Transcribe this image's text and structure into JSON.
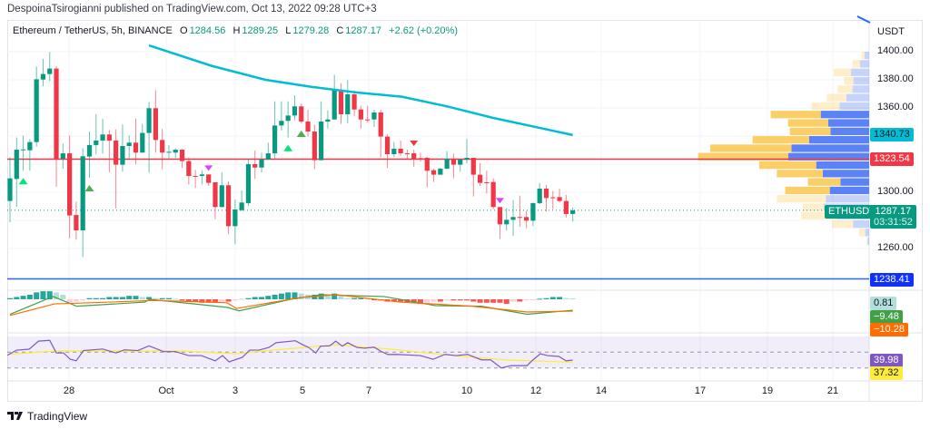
{
  "header": {
    "publish_line": "DespoinaTsirogianni published on TradingView.com, Oct 13, 2022 09:28 UTC+3"
  },
  "legend": {
    "symbol": "Ethereum / TetherUS, 5h, BINANCE",
    "o_label": "O",
    "o": "1284.56",
    "h_label": "H",
    "h": "1289.25",
    "l_label": "L",
    "l": "1279.28",
    "c_label": "C",
    "c": "1287.17",
    "change": "+2.62 (+0.20%)"
  },
  "price_axis": {
    "currency": "USDT",
    "ticks": [
      "1400.00",
      "1380.00",
      "1360.00",
      "1300.00",
      "1260.00"
    ],
    "tick_values": [
      1400,
      1380,
      1360,
      1300,
      1260
    ],
    "ma_tag": "1340.73",
    "resistance_tag": "1323.54",
    "symbol_tag": "ETHUSDT",
    "last_price_tag": "1287.17",
    "countdown": "03:31:52",
    "support_tag": "1238.41"
  },
  "macd_axis": {
    "histogram": "0.81",
    "macd": "−9.48",
    "signal": "−10.28"
  },
  "rsi_axis": {
    "rsi": "39.98",
    "rsi_ma": "37.32"
  },
  "time_axis": [
    "28",
    "Oct",
    "3",
    "5",
    "7",
    "10",
    "12",
    "14",
    "17",
    "19",
    "21"
  ],
  "colors": {
    "up": "#089981",
    "down": "#f23645",
    "ma": "#00bcd4",
    "resistance": "#f23645",
    "support": "#2962ff",
    "macd": "#43a047",
    "signal": "#ff6d00",
    "rsi": "#7e57c2",
    "rsi_ma": "#ffeb3b",
    "vp_up": "#5b83f7",
    "vp_down": "#fbcf68"
  },
  "chart_data": {
    "type": "candlestick",
    "levels": {
      "resistance": 1323.54,
      "support": 1238.41,
      "last": 1287.17
    },
    "candles_ohlc": [
      [
        1293.8,
        1325,
        1278.7,
        1309.9
      ],
      [
        1309.5,
        1339,
        1289.5,
        1330.3
      ],
      [
        1330.3,
        1340.4,
        1315.3,
        1330.5
      ],
      [
        1329.9,
        1337.9,
        1315.3,
        1335.7
      ],
      [
        1335.7,
        1389.5,
        1332.5,
        1380.4
      ],
      [
        1380.2,
        1394.8,
        1375.5,
        1384.1
      ],
      [
        1384.1,
        1399.8,
        1379.1,
        1388
      ],
      [
        1388,
        1389.9,
        1303.9,
        1323.9
      ],
      [
        1323.9,
        1334.6,
        1316.8,
        1327.7
      ],
      [
        1327.7,
        1340.4,
        1267.3,
        1283.5
      ],
      [
        1283.8,
        1293.3,
        1266.3,
        1272.9
      ],
      [
        1272.9,
        1331.4,
        1254,
        1325.6
      ],
      [
        1325.4,
        1343.2,
        1310.3,
        1333.6
      ],
      [
        1333.6,
        1355.5,
        1327.1,
        1336.8
      ],
      [
        1336.8,
        1352.3,
        1327.5,
        1341.1
      ],
      [
        1341.1,
        1344.3,
        1314.2,
        1336.8
      ],
      [
        1336.8,
        1344.7,
        1288.4,
        1319.6
      ],
      [
        1319.6,
        1348.2,
        1314.6,
        1332.9
      ],
      [
        1332.9,
        1340.4,
        1323.2,
        1335.3
      ],
      [
        1335.3,
        1352.3,
        1320,
        1328.2
      ],
      [
        1328.2,
        1348.6,
        1328.2,
        1342.2
      ],
      [
        1342.2,
        1364.1,
        1313.8,
        1359.8
      ],
      [
        1359.8,
        1372.7,
        1328.2,
        1337.2
      ],
      [
        1337.2,
        1345,
        1316.4,
        1328.2
      ],
      [
        1328.2,
        1333.6,
        1323.9,
        1328.8
      ],
      [
        1328.2,
        1331.4,
        1324.3,
        1330.3
      ],
      [
        1330.3,
        1330.8,
        1317.4,
        1322.2
      ],
      [
        1322.2,
        1324.9,
        1305.6,
        1311.6
      ],
      [
        1311.6,
        1315.9,
        1303,
        1311.4
      ],
      [
        1311.6,
        1315.7,
        1305.6,
        1312.7
      ],
      [
        1312.7,
        1312.7,
        1304.5,
        1306.7
      ],
      [
        1307.1,
        1307.1,
        1280.9,
        1289.5
      ],
      [
        1289.5,
        1314.2,
        1289.5,
        1305
      ],
      [
        1305,
        1307.8,
        1270.1,
        1275.9
      ],
      [
        1275.9,
        1294.9,
        1263,
        1287.8
      ],
      [
        1287.3,
        1301.3,
        1286.7,
        1292.7
      ],
      [
        1292.3,
        1323.9,
        1290.1,
        1320
      ],
      [
        1320,
        1329.7,
        1309.5,
        1317.6
      ],
      [
        1317.6,
        1328.2,
        1314.2,
        1323.2
      ],
      [
        1323.2,
        1335.3,
        1323.2,
        1327.7
      ],
      [
        1327.7,
        1364.7,
        1323.9,
        1347.5
      ],
      [
        1347.5,
        1364.7,
        1343.9,
        1350.8
      ],
      [
        1350.8,
        1364.7,
        1338.9,
        1354.6
      ],
      [
        1354.6,
        1369,
        1351.2,
        1361.1
      ],
      [
        1361.1,
        1363.2,
        1349,
        1350.3
      ],
      [
        1350.3,
        1358.7,
        1339.6,
        1343.2
      ],
      [
        1343.2,
        1348.2,
        1316.4,
        1322.8
      ],
      [
        1322.8,
        1364.7,
        1322.8,
        1350.3
      ],
      [
        1350.3,
        1358.3,
        1345.4,
        1351.8
      ],
      [
        1351.8,
        1383.6,
        1351.8,
        1372.7
      ],
      [
        1372.7,
        1377.6,
        1348.6,
        1355.5
      ],
      [
        1355.5,
        1379.8,
        1349,
        1369.7
      ],
      [
        1369.7,
        1372.3,
        1354,
        1358.9
      ],
      [
        1358.9,
        1361.5,
        1345.4,
        1351.8
      ],
      [
        1351.8,
        1361.5,
        1349.7,
        1351.6
      ],
      [
        1351.8,
        1358.7,
        1346.5,
        1356.8
      ],
      [
        1356.8,
        1358.7,
        1325,
        1339.6
      ],
      [
        1339.6,
        1341.1,
        1317.4,
        1327.1
      ],
      [
        1327.1,
        1335.7,
        1325,
        1331
      ],
      [
        1331,
        1336.8,
        1326,
        1327.7
      ],
      [
        1327.7,
        1330.3,
        1323.9,
        1327.5
      ],
      [
        1327.7,
        1330.3,
        1318.1,
        1323.9
      ],
      [
        1324.3,
        1328.2,
        1321.7,
        1324
      ],
      [
        1324.5,
        1325.4,
        1303.5,
        1315.3
      ],
      [
        1315.7,
        1316.8,
        1307.3,
        1312.5
      ],
      [
        1312.5,
        1317.4,
        1312.5,
        1316.8
      ],
      [
        1316.8,
        1329.3,
        1316.4,
        1323.9
      ],
      [
        1323.9,
        1327.5,
        1309.9,
        1319.6
      ],
      [
        1319.6,
        1323.9,
        1314.6,
        1323.2
      ],
      [
        1323.2,
        1337.9,
        1320.7,
        1324.5
      ],
      [
        1324.5,
        1324.5,
        1297,
        1312.5
      ],
      [
        1312.5,
        1320.7,
        1304.5,
        1306.7
      ],
      [
        1307.1,
        1315.3,
        1299.2,
        1307
      ],
      [
        1307.3,
        1309.9,
        1288,
        1289.5
      ],
      [
        1289.5,
        1289.5,
        1266.9,
        1277.2
      ],
      [
        1277.2,
        1288.8,
        1272.7,
        1280.4
      ],
      [
        1280.4,
        1294.4,
        1269,
        1282.4
      ],
      [
        1282.4,
        1297.6,
        1275.5,
        1282.2
      ],
      [
        1282.4,
        1286.7,
        1274.4,
        1279.8
      ],
      [
        1279.8,
        1292.7,
        1275.9,
        1292.3
      ],
      [
        1292.3,
        1306.7,
        1291.6,
        1302.6
      ],
      [
        1302.6,
        1305.2,
        1286.3,
        1295.9
      ],
      [
        1296.4,
        1300.9,
        1288,
        1296.2
      ],
      [
        1296.6,
        1302.4,
        1292.7,
        1293.8
      ],
      [
        1293.8,
        1298.1,
        1282,
        1284.56
      ],
      [
        1284.56,
        1289.25,
        1279.28,
        1287.17
      ]
    ],
    "moving_average": [
      [
        11,
        1424
      ],
      [
        22,
        1404.5
      ],
      [
        31.4,
        1390
      ],
      [
        39.6,
        1380
      ],
      [
        46.5,
        1375
      ],
      [
        53.4,
        1371
      ],
      [
        60.2,
        1368
      ],
      [
        67.1,
        1361
      ],
      [
        73.9,
        1353
      ],
      [
        80.8,
        1346
      ],
      [
        86,
        1340.73
      ]
    ],
    "signals": [
      {
        "type": "up",
        "bar": 3,
        "color": "#00e676"
      },
      {
        "type": "up",
        "bar": 13,
        "color": "#4caf50"
      },
      {
        "type": "up",
        "bar": 43,
        "color": "#00e676"
      },
      {
        "type": "up",
        "bar": 45,
        "color": "#4caf50"
      },
      {
        "type": "down",
        "bar": 31,
        "color": "#e040fb"
      },
      {
        "type": "down",
        "bar": 75,
        "color": "#e040fb"
      },
      {
        "type": "down",
        "bar": 62,
        "color": "#f23645"
      }
    ],
    "volume_profile": [
      {
        "price": 1400,
        "up": 15,
        "down": 10,
        "value_area": false
      },
      {
        "price": 1394,
        "up": 30,
        "down": 25,
        "value_area": false
      },
      {
        "price": 1388,
        "up": 60,
        "down": 57,
        "value_area": false
      },
      {
        "price": 1382,
        "up": 52,
        "down": 31,
        "value_area": false
      },
      {
        "price": 1376,
        "up": 55,
        "down": 50,
        "value_area": false
      },
      {
        "price": 1370,
        "up": 75,
        "down": 65,
        "value_area": false
      },
      {
        "price": 1364,
        "up": 98,
        "down": 92,
        "value_area": false
      },
      {
        "price": 1358,
        "up": 160,
        "down": 165,
        "value_area": true
      },
      {
        "price": 1352,
        "up": 135,
        "down": 133,
        "value_area": true
      },
      {
        "price": 1346,
        "up": 128,
        "down": 134,
        "value_area": true
      },
      {
        "price": 1340,
        "up": 198,
        "down": 187,
        "value_area": true
      },
      {
        "price": 1334,
        "up": 257,
        "down": 268,
        "value_area": true
      },
      {
        "price": 1328,
        "up": 267,
        "down": 298,
        "value_area": true
      },
      {
        "price": 1322,
        "up": 175,
        "down": 188,
        "value_area": true
      },
      {
        "price": 1316,
        "up": 153,
        "down": 152,
        "value_area": true
      },
      {
        "price": 1310,
        "up": 95,
        "down": 107,
        "value_area": true
      },
      {
        "price": 1304,
        "up": 130,
        "down": 147,
        "value_area": true
      },
      {
        "price": 1298,
        "up": 143,
        "down": 162,
        "value_area": false
      },
      {
        "price": 1292,
        "up": 150,
        "down": 70,
        "value_area": false
      },
      {
        "price": 1286,
        "up": 108,
        "down": 117,
        "value_area": false
      },
      {
        "price": 1280,
        "up": 53,
        "down": 70,
        "value_area": false
      },
      {
        "price": 1274,
        "up": 13,
        "down": 20,
        "value_area": false
      },
      {
        "price": 1268,
        "up": 5,
        "down": 3,
        "value_area": false
      }
    ],
    "macd_histogram": [
      1,
      2,
      3,
      4,
      6,
      7,
      7,
      6,
      4,
      -3,
      -2,
      -1,
      1,
      1,
      1,
      2,
      2,
      2,
      3,
      3,
      2,
      2,
      1,
      1,
      1,
      0.5,
      -1,
      -2,
      -2,
      -3,
      -3,
      -3,
      -2,
      -2,
      -1,
      0.5,
      1,
      2,
      2,
      3,
      4,
      5,
      6,
      6,
      5,
      4,
      4,
      5,
      3,
      5,
      3,
      1,
      1,
      1,
      0.5,
      -0.5,
      -1,
      -2,
      -2,
      -2,
      -3,
      -3,
      -4,
      -3,
      -2,
      -2,
      -1,
      -1,
      -1,
      -1,
      -2,
      -3,
      -3,
      -3,
      -3,
      -4,
      -2,
      -2,
      -1,
      -0.5,
      0.5,
      1,
      2,
      2,
      1,
      0.81
    ],
    "macd_line": [
      [
        1,
        -13
      ],
      [
        7.5,
        2.4
      ],
      [
        11.1,
        -6
      ],
      [
        21.4,
        -2.4
      ],
      [
        22.1,
        0
      ],
      [
        33.8,
        -7
      ],
      [
        35.6,
        -10
      ],
      [
        43.4,
        0
      ],
      [
        48,
        4
      ],
      [
        57.5,
        2.4
      ],
      [
        65.3,
        -5.5
      ],
      [
        72.2,
        -6
      ],
      [
        79.1,
        -13
      ],
      [
        86,
        -9.48
      ]
    ],
    "signal_line": [
      [
        1,
        -14
      ],
      [
        7.7,
        -4
      ],
      [
        13.2,
        -3
      ],
      [
        22.8,
        -1
      ],
      [
        33.8,
        -3
      ],
      [
        35.2,
        -8
      ],
      [
        44.8,
        1.5
      ],
      [
        50.3,
        4
      ],
      [
        59.9,
        -2.4
      ],
      [
        70.8,
        -6
      ],
      [
        79.1,
        -11
      ],
      [
        86,
        -10.28
      ]
    ],
    "rsi": [
      [
        0.6,
        46
      ],
      [
        2,
        52.6
      ],
      [
        3.9,
        53.8
      ],
      [
        5.3,
        64
      ],
      [
        7,
        65
      ],
      [
        8,
        49
      ],
      [
        9.1,
        49
      ],
      [
        10.1,
        41
      ],
      [
        11,
        39
      ],
      [
        12.1,
        52
      ],
      [
        15,
        54
      ],
      [
        17,
        49
      ],
      [
        18.3,
        53
      ],
      [
        20.3,
        52
      ],
      [
        22,
        58
      ],
      [
        24.2,
        50.7
      ],
      [
        26,
        50.7
      ],
      [
        28,
        45.7
      ],
      [
        29.9,
        45.7
      ],
      [
        32,
        39
      ],
      [
        33.1,
        45.7
      ],
      [
        34.1,
        37.7
      ],
      [
        36.1,
        43.5
      ],
      [
        37.2,
        52.6
      ],
      [
        38.6,
        52.6
      ],
      [
        40.1,
        56
      ],
      [
        41.2,
        62
      ],
      [
        44.1,
        64.5
      ],
      [
        45.2,
        59.5
      ],
      [
        46.1,
        56
      ],
      [
        47.2,
        49
      ],
      [
        47.9,
        57.6
      ],
      [
        49.3,
        58
      ],
      [
        50.2,
        64
      ],
      [
        51.2,
        57.6
      ],
      [
        52,
        62
      ],
      [
        53.4,
        56
      ],
      [
        54.6,
        55
      ],
      [
        56,
        56.4
      ],
      [
        57.1,
        50.7
      ],
      [
        58.1,
        47
      ],
      [
        59.4,
        47.2
      ],
      [
        63,
        45.7
      ],
      [
        64.9,
        41
      ],
      [
        66.7,
        47.2
      ],
      [
        68.4,
        45.7
      ],
      [
        70.1,
        47.2
      ],
      [
        72.2,
        40.3
      ],
      [
        73.6,
        40.3
      ],
      [
        75.2,
        30
      ],
      [
        76.7,
        33
      ],
      [
        79.1,
        33
      ],
      [
        80,
        40.3
      ],
      [
        81.1,
        48
      ],
      [
        82.2,
        45.7
      ],
      [
        83.9,
        44.6
      ],
      [
        85,
        39
      ],
      [
        86,
        39.98
      ]
    ],
    "rsi_ma": [
      [
        0.6,
        47
      ],
      [
        7.6,
        51.5
      ],
      [
        15.9,
        51.5
      ],
      [
        26.9,
        51.5
      ],
      [
        35.2,
        48
      ],
      [
        39.3,
        51.5
      ],
      [
        50.2,
        59.5
      ],
      [
        58.5,
        53.8
      ],
      [
        68.1,
        45.7
      ],
      [
        76.3,
        40
      ],
      [
        86,
        37.32
      ]
    ],
    "rsi_bands": [
      70,
      50,
      30
    ]
  }
}
